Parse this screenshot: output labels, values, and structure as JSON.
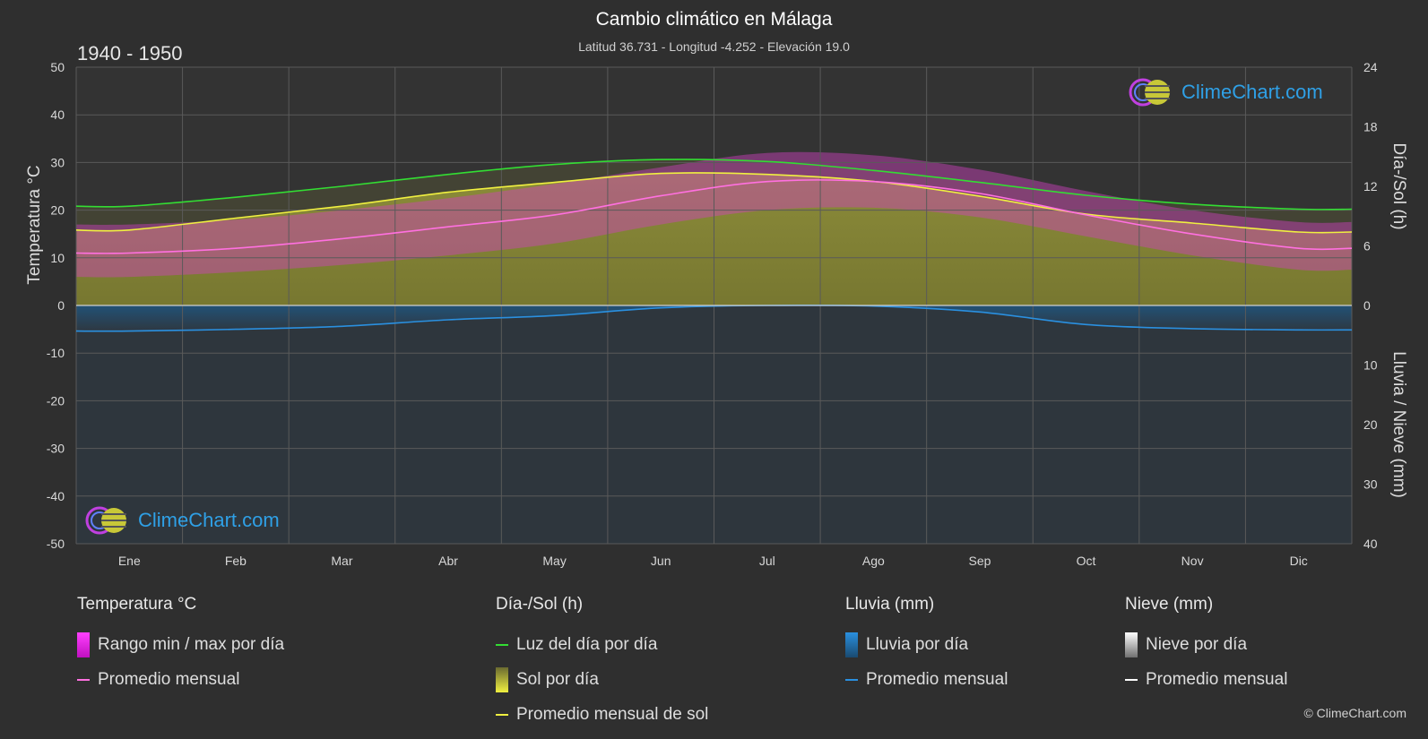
{
  "header": {
    "title": "Cambio climático en Málaga",
    "subtitle": "Latitud 36.731 - Longitud -4.252 - Elevación 19.0",
    "period": "1940 - 1950"
  },
  "logo": {
    "text": "ClimeChart.com"
  },
  "copyright": "© ClimeChart.com",
  "colors": {
    "background": "#2f2f2f",
    "temp_range": "#e020d0",
    "temp_avg": "#ff70e0",
    "daylight": "#33dd33",
    "sunshine_fill": "#8a8a35",
    "sunshine_avg": "#f0f040",
    "rain": "#2080d0",
    "rain_avg": "#2a90e0",
    "snow": "#ffffff"
  },
  "legend": {
    "temperature": {
      "title": "Temperatura °C",
      "range": "Rango min / max por día",
      "avg": "Promedio mensual"
    },
    "sun": {
      "title": "Día-/Sol (h)",
      "daylight": "Luz del día por día",
      "sunshine": "Sol por día",
      "sunshine_avg": "Promedio mensual de sol"
    },
    "rain": {
      "title": "Lluvia (mm)",
      "daily": "Lluvia por día",
      "avg": "Promedio mensual"
    },
    "snow": {
      "title": "Nieve (mm)",
      "daily": "Nieve por día",
      "avg": "Promedio mensual"
    }
  },
  "chart_data": {
    "type": "line",
    "categories": [
      "Ene",
      "Feb",
      "Mar",
      "Abr",
      "May",
      "Jun",
      "Jul",
      "Ago",
      "Sep",
      "Oct",
      "Nov",
      "Dic"
    ],
    "ylabel_left": "Temperatura °C",
    "ylabel_right_top": "Día-/Sol (h)",
    "ylabel_right_bottom": "Lluvia / Nieve (mm)",
    "ylim_left": [
      -50,
      50
    ],
    "yticks_left": [
      50,
      40,
      30,
      20,
      10,
      0,
      -10,
      -20,
      -30,
      -40,
      -50
    ],
    "ylim_sun_hours": [
      0,
      24
    ],
    "yticks_sun": [
      24,
      18,
      12,
      6,
      0
    ],
    "ylim_precip_mm": [
      0,
      40
    ],
    "yticks_precip": [
      10,
      20,
      30,
      40
    ],
    "grid": true,
    "series": [
      {
        "name": "Luz del día por día",
        "unit": "h",
        "values": [
          10.0,
          10.9,
          12.0,
          13.2,
          14.2,
          14.7,
          14.5,
          13.6,
          12.4,
          11.1,
          10.2,
          9.7
        ]
      },
      {
        "name": "Promedio mensual de sol",
        "unit": "h",
        "values": [
          7.6,
          8.8,
          10.0,
          11.4,
          12.4,
          13.3,
          13.2,
          12.5,
          11.0,
          9.2,
          8.3,
          7.4
        ]
      },
      {
        "name": "Temperatura promedio mensual",
        "unit": "°C",
        "values": [
          11.0,
          12.0,
          14.0,
          16.5,
          19.0,
          23.0,
          26.0,
          26.0,
          23.5,
          19.0,
          15.0,
          12.0
        ]
      },
      {
        "name": "Temperatura máxima diaria",
        "unit": "°C",
        "values": [
          17.0,
          18.0,
          20.0,
          22.5,
          25.5,
          29.0,
          32.0,
          31.5,
          28.5,
          24.0,
          20.0,
          17.5
        ]
      },
      {
        "name": "Temperatura mínima diaria",
        "unit": "°C",
        "values": [
          6.0,
          7.0,
          8.5,
          10.5,
          13.0,
          17.0,
          20.0,
          20.5,
          18.5,
          14.5,
          10.5,
          7.5
        ]
      },
      {
        "name": "Lluvia promedio mensual",
        "unit": "mm",
        "values": [
          4.3,
          4.0,
          3.5,
          2.4,
          1.7,
          0.4,
          0.0,
          0.1,
          1.1,
          3.2,
          3.9,
          4.1
        ]
      },
      {
        "name": "Nieve promedio mensual",
        "unit": "mm",
        "values": [
          0,
          0,
          0,
          0,
          0,
          0,
          0,
          0,
          0,
          0,
          0,
          0
        ]
      }
    ]
  }
}
